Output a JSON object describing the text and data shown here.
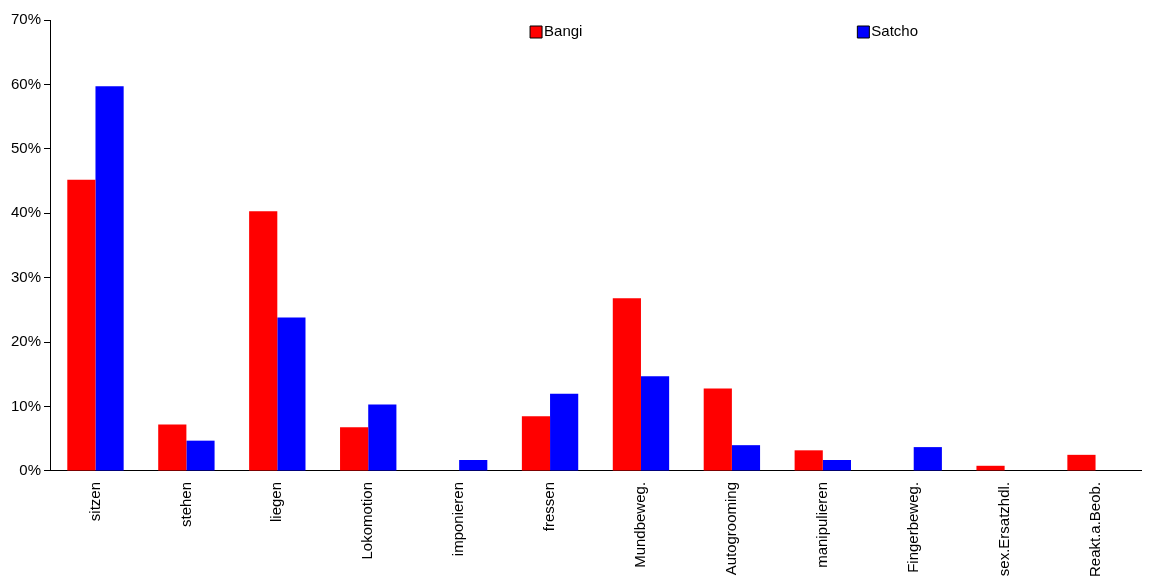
{
  "chart_data": {
    "type": "bar",
    "categories": [
      "sitzen",
      "stehen",
      "liegen",
      "Lokomotion",
      "imponieren",
      "fressen",
      "Mundbeweg.",
      "Autogrooming",
      "manipulieren",
      "Fingerbeweg.",
      "sex.Ersatzhdl.",
      "Reakt.a.Beob."
    ],
    "series": [
      {
        "name": "Bangi",
        "color": "#ff0000",
        "values": [
          45.2,
          7.2,
          40.3,
          6.8,
          0,
          8.5,
          26.8,
          12.8,
          3.2,
          0,
          0.8,
          2.5
        ]
      },
      {
        "name": "Satcho",
        "color": "#0000ff",
        "values": [
          59.7,
          4.7,
          23.8,
          10.3,
          1.7,
          12,
          14.7,
          4,
          1.7,
          3.7,
          0,
          0
        ]
      }
    ],
    "ylim": [
      0,
      70
    ],
    "yticks": [
      {
        "value": 0,
        "label": "0%"
      },
      {
        "value": 10,
        "label": "10%"
      },
      {
        "value": 20,
        "label": "20%"
      },
      {
        "value": 30,
        "label": "30%"
      },
      {
        "value": 40,
        "label": "40%"
      },
      {
        "value": 50,
        "label": "50%"
      },
      {
        "value": 60,
        "label": "60%"
      },
      {
        "value": 70,
        "label": "70%"
      }
    ],
    "grid": false,
    "legend": "top right"
  }
}
